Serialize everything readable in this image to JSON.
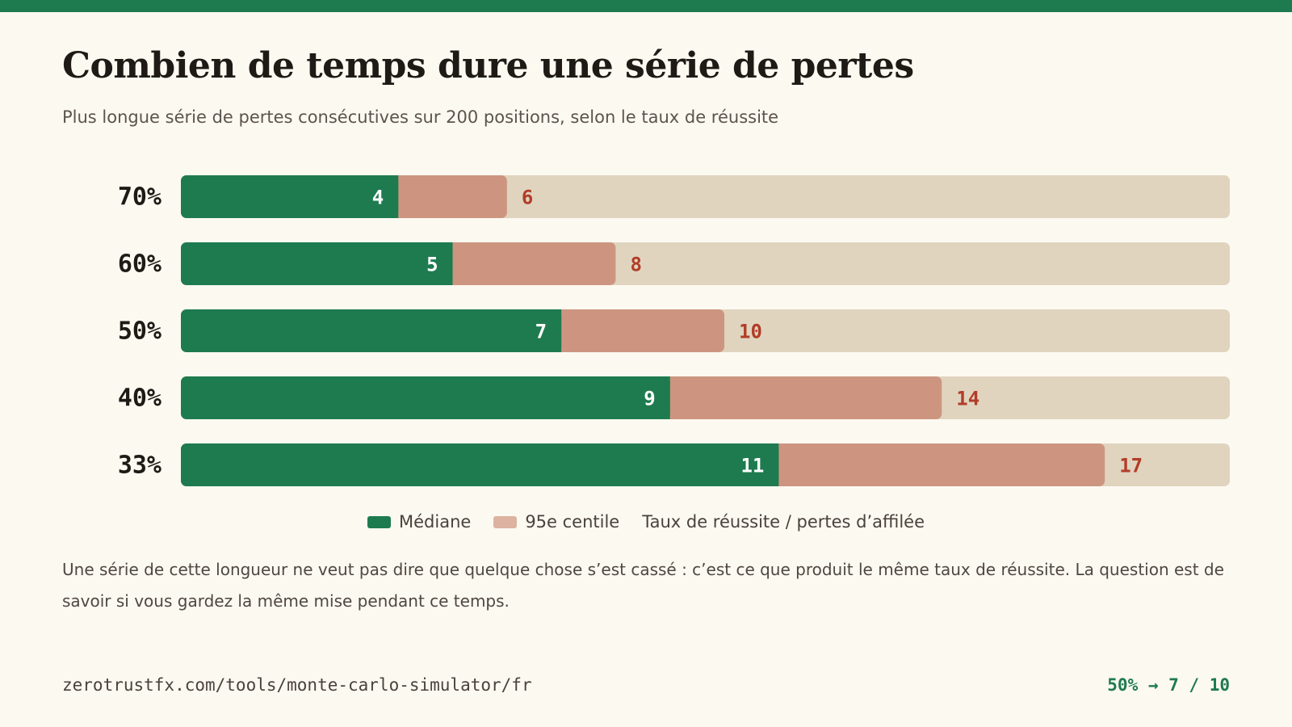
{
  "colors": {
    "accent": "#1e7b4f",
    "p95": "#cd9580",
    "p95_legend": "#ddb2a1",
    "track": "#e0d4bf",
    "p95_text": "#b13d28"
  },
  "header": {
    "title": "Combien de temps dure une série de pertes",
    "subtitle": "Plus longue série de pertes consécutives sur 200 positions, selon le taux de réussite"
  },
  "chart_data": {
    "type": "bar",
    "orientation": "horizontal",
    "title": "Combien de temps dure une série de pertes",
    "subtitle": "Plus longue série de pertes consécutives sur 200 positions, selon le taux de réussite",
    "categories": [
      "70%",
      "60%",
      "50%",
      "40%",
      "33%"
    ],
    "series": [
      {
        "name": "Médiane",
        "values": [
          4,
          5,
          7,
          9,
          11
        ]
      },
      {
        "name": "95e centile",
        "values": [
          6,
          8,
          10,
          14,
          17
        ]
      }
    ],
    "xlim": [
      0,
      19.3
    ],
    "grid": false,
    "legend": "bottom-center"
  },
  "legend": {
    "median": "Médiane",
    "p95": "95e centile",
    "axis_note": "Taux de réussite / pertes d’affilée"
  },
  "note": "Une série de cette longueur ne veut pas dire que quelque chose s’est cassé : c’est ce que produit le même taux de réussite. La question est de savoir si vous gardez la même mise pendant ce temps.",
  "footer": {
    "url": "zerotrustfx.com/tools/monte-carlo-simulator/fr",
    "stat": "50% → 7 / 10"
  }
}
